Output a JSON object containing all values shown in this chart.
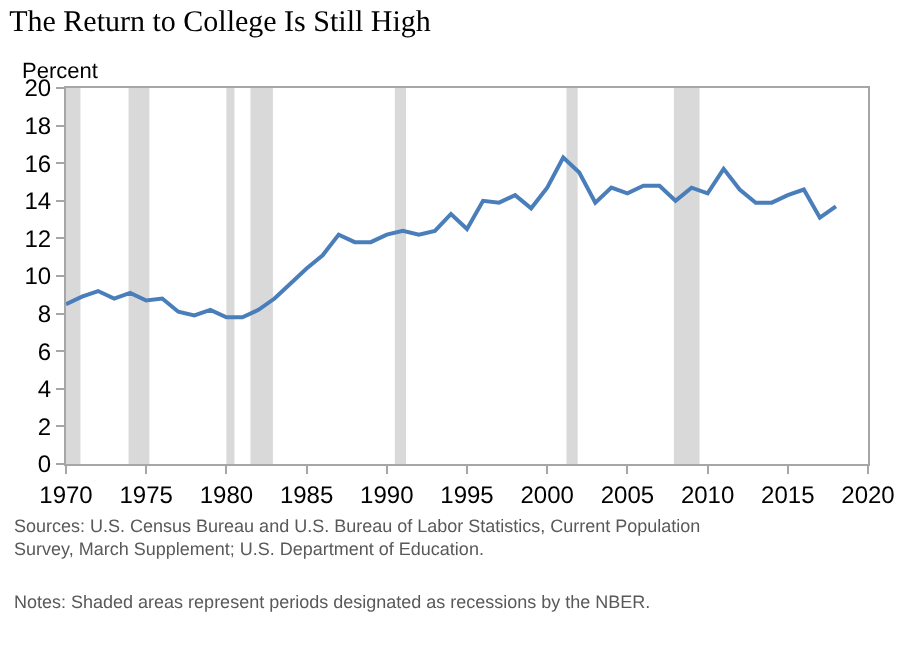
{
  "chart_data": {
    "type": "line",
    "title": "The Return to College Is Still High",
    "ylabel": "Percent",
    "x": [
      1970,
      1971,
      1972,
      1973,
      1974,
      1975,
      1976,
      1977,
      1978,
      1979,
      1980,
      1981,
      1982,
      1983,
      1984,
      1985,
      1986,
      1987,
      1988,
      1989,
      1990,
      1991,
      1992,
      1993,
      1994,
      1995,
      1996,
      1997,
      1998,
      1999,
      2000,
      2001,
      2002,
      2003,
      2004,
      2005,
      2006,
      2007,
      2008,
      2009,
      2010,
      2011,
      2012,
      2013,
      2014,
      2015,
      2016,
      2017,
      2018
    ],
    "series": [
      {
        "color": "#4a7ebb",
        "values": [
          8.5,
          8.9,
          9.2,
          8.8,
          9.1,
          8.7,
          8.8,
          8.1,
          7.9,
          8.2,
          7.8,
          7.8,
          8.2,
          8.8,
          9.6,
          10.4,
          11.1,
          12.2,
          11.8,
          11.8,
          12.2,
          12.4,
          12.2,
          12.4,
          13.3,
          12.5,
          14.0,
          13.9,
          14.3,
          13.6,
          14.7,
          16.3,
          15.5,
          13.9,
          14.7,
          14.4,
          14.8,
          14.8,
          14.0,
          14.7,
          14.4,
          15.7,
          14.6,
          13.9,
          13.9,
          14.3,
          14.6,
          13.1,
          13.7
        ]
      }
    ],
    "xlim": [
      1970,
      2020
    ],
    "xticks": [
      1970,
      1975,
      1980,
      1985,
      1990,
      1995,
      2000,
      2005,
      2010,
      2015,
      2020
    ],
    "ylim": [
      0,
      20
    ],
    "yticks": [
      0,
      2,
      4,
      6,
      8,
      10,
      12,
      14,
      16,
      18,
      20
    ],
    "bands": [
      {
        "axis": "x",
        "from": 1970,
        "to": 1970.9,
        "color": "#d9d9d9"
      },
      {
        "axis": "x",
        "from": 1973.9,
        "to": 1975.2,
        "color": "#d9d9d9"
      },
      {
        "axis": "x",
        "from": 1980.0,
        "to": 1980.5,
        "color": "#d9d9d9"
      },
      {
        "axis": "x",
        "from": 1981.5,
        "to": 1982.9,
        "color": "#d9d9d9"
      },
      {
        "axis": "x",
        "from": 1990.5,
        "to": 1991.2,
        "color": "#d9d9d9"
      },
      {
        "axis": "x",
        "from": 2001.2,
        "to": 2001.9,
        "color": "#d9d9d9"
      },
      {
        "axis": "x",
        "from": 2007.9,
        "to": 2009.5,
        "color": "#d9d9d9"
      }
    ],
    "annotations": [
      "Sources: U.S. Census Bureau and U.S. Bureau of Labor Statistics, Current Population Survey, March Supplement; U.S. Department of Education.",
      "Notes: Shaded areas represent periods designated as recessions by the NBER."
    ],
    "grid": false,
    "marker": "none",
    "line_style": "solid"
  }
}
